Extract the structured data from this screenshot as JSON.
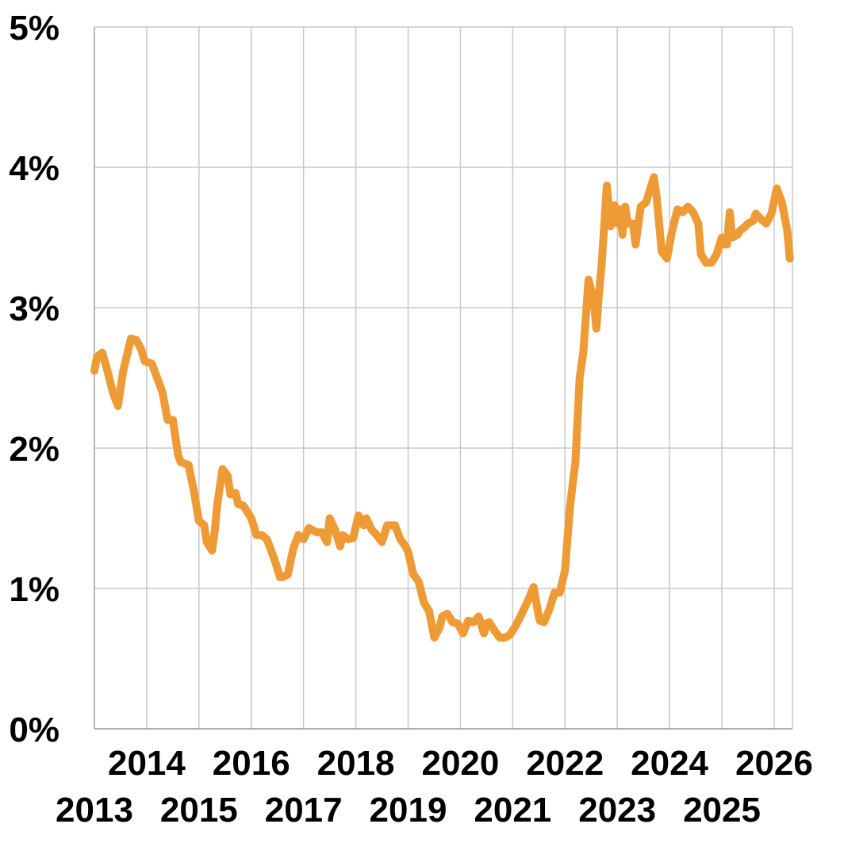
{
  "chart_data": {
    "type": "line",
    "title": "",
    "xlabel": "",
    "ylabel": "",
    "xlim": [
      2013.0,
      2026.35
    ],
    "ylim": [
      0,
      5
    ],
    "grid": true,
    "legend": "none",
    "y_ticks": [
      {
        "value": 0,
        "label": "0%"
      },
      {
        "value": 1,
        "label": "1%"
      },
      {
        "value": 2,
        "label": "2%"
      },
      {
        "value": 3,
        "label": "3%"
      },
      {
        "value": 4,
        "label": "4%"
      },
      {
        "value": 5,
        "label": "5%"
      }
    ],
    "x_ticks": [
      {
        "value": 2013,
        "label": "2013"
      },
      {
        "value": 2014,
        "label": "2014"
      },
      {
        "value": 2015,
        "label": "2015"
      },
      {
        "value": 2016,
        "label": "2016"
      },
      {
        "value": 2017,
        "label": "2017"
      },
      {
        "value": 2018,
        "label": "2018"
      },
      {
        "value": 2019,
        "label": "2019"
      },
      {
        "value": 2020,
        "label": "2020"
      },
      {
        "value": 2021,
        "label": "2021"
      },
      {
        "value": 2022,
        "label": "2022"
      },
      {
        "value": 2023,
        "label": "2023"
      },
      {
        "value": 2024,
        "label": "2024"
      },
      {
        "value": 2025,
        "label": "2025"
      },
      {
        "value": 2026,
        "label": "2026"
      }
    ],
    "series": [
      {
        "color": "#EE9B36",
        "x": [
          2013.0,
          2013.05,
          2013.15,
          2013.25,
          2013.35,
          2013.45,
          2013.55,
          2013.7,
          2013.8,
          2013.9,
          2013.96,
          2014.1,
          2014.2,
          2014.3,
          2014.4,
          2014.5,
          2014.6,
          2014.65,
          2014.8,
          2014.9,
          2015.0,
          2015.1,
          2015.15,
          2015.25,
          2015.3,
          2015.35,
          2015.45,
          2015.55,
          2015.6,
          2015.7,
          2015.75,
          2015.85,
          2016.0,
          2016.1,
          2016.2,
          2016.3,
          2016.45,
          2016.55,
          2016.6,
          2016.7,
          2016.8,
          2016.9,
          2017.0,
          2017.1,
          2017.15,
          2017.25,
          2017.35,
          2017.45,
          2017.5,
          2017.6,
          2017.7,
          2017.75,
          2017.85,
          2017.95,
          2018.05,
          2018.15,
          2018.2,
          2018.3,
          2018.4,
          2018.5,
          2018.6,
          2018.75,
          2018.85,
          2018.95,
          2019.0,
          2019.1,
          2019.2,
          2019.3,
          2019.4,
          2019.5,
          2019.6,
          2019.65,
          2019.75,
          2019.85,
          2019.95,
          2020.05,
          2020.15,
          2020.25,
          2020.35,
          2020.45,
          2020.5,
          2020.55,
          2020.65,
          2020.75,
          2020.85,
          2020.95,
          2021.05,
          2021.15,
          2021.3,
          2021.4,
          2021.5,
          2021.52,
          2021.6,
          2021.7,
          2021.8,
          2021.9,
          2022.0,
          2022.1,
          2022.15,
          2022.2,
          2022.28,
          2022.35,
          2022.45,
          2022.55,
          2022.6,
          2022.65,
          2022.7,
          2022.8,
          2022.87,
          2022.95,
          2023.0,
          2023.05,
          2023.1,
          2023.15,
          2023.2,
          2023.3,
          2023.35,
          2023.45,
          2023.55,
          2023.7,
          2023.75,
          2023.85,
          2023.95,
          2024.05,
          2024.15,
          2024.25,
          2024.35,
          2024.45,
          2024.55,
          2024.6,
          2024.7,
          2024.8,
          2024.9,
          2025.0,
          2025.05,
          2025.1,
          2025.15,
          2025.2,
          2025.3,
          2025.35,
          2025.45,
          2025.5,
          2025.6,
          2025.65,
          2025.75,
          2025.85,
          2025.95,
          2026.05,
          2026.15,
          2026.25,
          2026.3
        ],
        "values": [
          2.55,
          2.65,
          2.68,
          2.55,
          2.4,
          2.3,
          2.55,
          2.78,
          2.77,
          2.7,
          2.62,
          2.6,
          2.5,
          2.4,
          2.2,
          2.2,
          1.95,
          1.9,
          1.88,
          1.7,
          1.48,
          1.45,
          1.33,
          1.27,
          1.4,
          1.6,
          1.85,
          1.8,
          1.67,
          1.68,
          1.6,
          1.59,
          1.5,
          1.38,
          1.38,
          1.35,
          1.2,
          1.08,
          1.08,
          1.1,
          1.28,
          1.38,
          1.35,
          1.43,
          1.42,
          1.4,
          1.4,
          1.33,
          1.5,
          1.42,
          1.3,
          1.38,
          1.35,
          1.36,
          1.52,
          1.45,
          1.5,
          1.42,
          1.38,
          1.33,
          1.45,
          1.45,
          1.35,
          1.3,
          1.26,
          1.1,
          1.05,
          0.9,
          0.84,
          0.65,
          0.72,
          0.8,
          0.82,
          0.76,
          0.75,
          0.68,
          0.77,
          0.76,
          0.8,
          0.68,
          0.75,
          0.76,
          0.7,
          0.65,
          0.65,
          0.67,
          0.73,
          0.8,
          0.92,
          1.01,
          0.8,
          0.77,
          0.76,
          0.85,
          0.97,
          0.97,
          1.13,
          1.6,
          1.75,
          1.9,
          2.5,
          2.68,
          3.2,
          3.05,
          2.85,
          3.1,
          3.3,
          3.87,
          3.58,
          3.73,
          3.6,
          3.7,
          3.52,
          3.72,
          3.6,
          3.6,
          3.45,
          3.72,
          3.75,
          3.93,
          3.8,
          3.4,
          3.35,
          3.55,
          3.7,
          3.68,
          3.72,
          3.68,
          3.6,
          3.38,
          3.32,
          3.32,
          3.38,
          3.5,
          3.45,
          3.45,
          3.68,
          3.5,
          3.52,
          3.55,
          3.58,
          3.6,
          3.62,
          3.67,
          3.63,
          3.6,
          3.67,
          3.85,
          3.75,
          3.55,
          3.35
        ]
      }
    ]
  }
}
